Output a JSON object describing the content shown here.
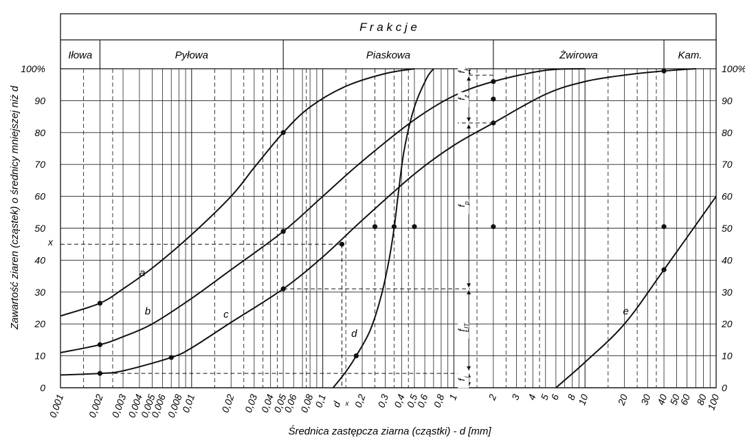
{
  "chart_data": {
    "type": "line",
    "header_title": "F r a k c j e",
    "fractions": [
      {
        "label": "Iłowa",
        "from": 0.001,
        "to": 0.002
      },
      {
        "label": "Pyłowa",
        "from": 0.002,
        "to": 0.05
      },
      {
        "label": "Piaskowa",
        "from": 0.05,
        "to": 2
      },
      {
        "label": "Żwirowa",
        "from": 2,
        "to": 40
      },
      {
        "label": "Kam.",
        "from": 40,
        "to": 100
      }
    ],
    "xlabel": "Średnica zastępcza ziarna (cząstki) - d [mm]",
    "ylabel": "Zawartość ziaren (cząstek) o średnicy mniejszej niż d",
    "x_scale": "log",
    "xlim": [
      0.001,
      100
    ],
    "ylim": [
      0,
      100
    ],
    "x_ticks": [
      {
        "v": 0.001,
        "t": "0,001"
      },
      {
        "v": 0.002,
        "t": "0,002"
      },
      {
        "v": 0.003,
        "t": "0,003"
      },
      {
        "v": 0.004,
        "t": "0,004"
      },
      {
        "v": 0.005,
        "t": "0,005"
      },
      {
        "v": 0.006,
        "t": "0,006"
      },
      {
        "v": 0.008,
        "t": "0,008"
      },
      {
        "v": 0.01,
        "t": "0,01"
      },
      {
        "v": 0.02,
        "t": "0,02"
      },
      {
        "v": 0.03,
        "t": "0,03"
      },
      {
        "v": 0.04,
        "t": "0,04"
      },
      {
        "v": 0.05,
        "t": "0,05"
      },
      {
        "v": 0.06,
        "t": "0,06"
      },
      {
        "v": 0.08,
        "t": "0,08"
      },
      {
        "v": 0.1,
        "t": "0,1"
      },
      {
        "v": 0.2,
        "t": "0,2"
      },
      {
        "v": 0.3,
        "t": "0,3"
      },
      {
        "v": 0.4,
        "t": "0,4"
      },
      {
        "v": 0.5,
        "t": "0,5"
      },
      {
        "v": 0.6,
        "t": "0,6"
      },
      {
        "v": 0.8,
        "t": "0,8"
      },
      {
        "v": 1,
        "t": "1"
      },
      {
        "v": 2,
        "t": "2"
      },
      {
        "v": 3,
        "t": "3"
      },
      {
        "v": 4,
        "t": "4"
      },
      {
        "v": 5,
        "t": "5"
      },
      {
        "v": 6,
        "t": "6"
      },
      {
        "v": 8,
        "t": "8"
      },
      {
        "v": 10,
        "t": "10"
      },
      {
        "v": 20,
        "t": "20"
      },
      {
        "v": 30,
        "t": "30"
      },
      {
        "v": 40,
        "t": "40"
      },
      {
        "v": 50,
        "t": "50"
      },
      {
        "v": 60,
        "t": "60"
      },
      {
        "v": 80,
        "t": "80"
      },
      {
        "v": 100,
        "t": "100"
      }
    ],
    "y_ticks_left": [
      "0",
      "10",
      "20",
      "30",
      "40",
      "50",
      "60",
      "70",
      "80",
      "90",
      "100%"
    ],
    "y_ticks_right": [
      "0",
      "10",
      "20",
      "30",
      "40",
      "50",
      "60",
      "70",
      "80",
      "90",
      "100%"
    ],
    "series": [
      {
        "name": "a",
        "points": [
          [
            0.001,
            22.5
          ],
          [
            0.002,
            26.5
          ],
          [
            0.003,
            31
          ],
          [
            0.005,
            37.5
          ],
          [
            0.01,
            48
          ],
          [
            0.02,
            60
          ],
          [
            0.03,
            69
          ],
          [
            0.05,
            80
          ],
          [
            0.08,
            88
          ],
          [
            0.15,
            94.5
          ],
          [
            0.3,
            98.5
          ],
          [
            0.5,
            100
          ]
        ]
      },
      {
        "name": "b",
        "points": [
          [
            0.001,
            11
          ],
          [
            0.002,
            13.5
          ],
          [
            0.003,
            16
          ],
          [
            0.005,
            20
          ],
          [
            0.01,
            28
          ],
          [
            0.02,
            37
          ],
          [
            0.05,
            49
          ],
          [
            0.1,
            60
          ],
          [
            0.2,
            71
          ],
          [
            0.5,
            84
          ],
          [
            1,
            91.5
          ],
          [
            2,
            96
          ],
          [
            5,
            99.5
          ],
          [
            10,
            100
          ]
        ]
      },
      {
        "name": "c",
        "points": [
          [
            0.001,
            4
          ],
          [
            0.002,
            4.5
          ],
          [
            0.003,
            5.3
          ],
          [
            0.007,
            9.5
          ],
          [
            0.01,
            12.5
          ],
          [
            0.02,
            20.5
          ],
          [
            0.05,
            31
          ],
          [
            0.1,
            41
          ],
          [
            0.2,
            52.5
          ],
          [
            0.5,
            67
          ],
          [
            1,
            76
          ],
          [
            2,
            83
          ],
          [
            5,
            92
          ],
          [
            10,
            96
          ],
          [
            20,
            98
          ],
          [
            40,
            99.3
          ],
          [
            70,
            100
          ]
        ]
      },
      {
        "name": "d",
        "points": [
          [
            0.12,
            0
          ],
          [
            0.15,
            5
          ],
          [
            0.18,
            10
          ],
          [
            0.23,
            18
          ],
          [
            0.28,
            29
          ],
          [
            0.32,
            40
          ],
          [
            0.35,
            50
          ],
          [
            0.38,
            62
          ],
          [
            0.42,
            75
          ],
          [
            0.5,
            88
          ],
          [
            0.62,
            97
          ],
          [
            0.7,
            100
          ]
        ]
      },
      {
        "name": "e",
        "points": [
          [
            6,
            0
          ],
          [
            10,
            8
          ],
          [
            20,
            20
          ],
          [
            40,
            37
          ],
          [
            100,
            60
          ]
        ]
      }
    ],
    "points": [
      {
        "x": 0.002,
        "y": 26.5
      },
      {
        "x": 0.002,
        "y": 13.5
      },
      {
        "x": 0.002,
        "y": 4.5
      },
      {
        "x": 0.007,
        "y": 9.5
      },
      {
        "x": 0.05,
        "y": 80
      },
      {
        "x": 0.05,
        "y": 49
      },
      {
        "x": 0.05,
        "y": 31
      },
      {
        "x": 0.14,
        "y": 45
      },
      {
        "x": 0.18,
        "y": 10
      },
      {
        "x": 0.25,
        "y": 50.5
      },
      {
        "x": 0.35,
        "y": 50.5
      },
      {
        "x": 0.5,
        "y": 50.5
      },
      {
        "x": 2,
        "y": 50.5
      },
      {
        "x": 2,
        "y": 96
      },
      {
        "x": 2,
        "y": 90.5
      },
      {
        "x": 2,
        "y": 83
      },
      {
        "x": 40,
        "y": 99.3
      },
      {
        "x": 40,
        "y": 50.5
      },
      {
        "x": 40,
        "y": 37
      }
    ],
    "dashed_v": [
      0.0015,
      0.0025,
      0.015,
      0.025,
      0.035,
      0.045,
      0.075,
      0.15,
      0.25,
      0.35,
      0.45,
      1.5,
      2.5,
      3.5,
      4.5,
      15,
      25,
      35
    ],
    "annotations": {
      "curve_labels": [
        {
          "t": "a",
          "x": 0.004,
          "y": 35
        },
        {
          "t": "b",
          "x": 0.0044,
          "y": 23
        },
        {
          "t": "c",
          "x": 0.0175,
          "y": 22
        },
        {
          "t": "d",
          "x": 0.165,
          "y": 16
        },
        {
          "t": "e",
          "x": 19.5,
          "y": 23
        }
      ],
      "x_mark": {
        "t": "x",
        "y": 45
      },
      "dx_label": "d",
      "dx_sub": "x",
      "f_labels": [
        {
          "t": "f",
          "sub": "k",
          "y_from": 98,
          "y_to": 100
        },
        {
          "t": "f",
          "sub": "ż",
          "y_from": 83,
          "y_to": 98
        },
        {
          "t": "f",
          "sub": "p",
          "y_from": 31,
          "y_to": 83
        },
        {
          "t": "f",
          "sub": "ŁIT",
          "y_from": 5,
          "y_to": 31
        },
        {
          "t": "f",
          "sub": "i",
          "y_from": 0,
          "y_to": 5
        }
      ]
    }
  }
}
